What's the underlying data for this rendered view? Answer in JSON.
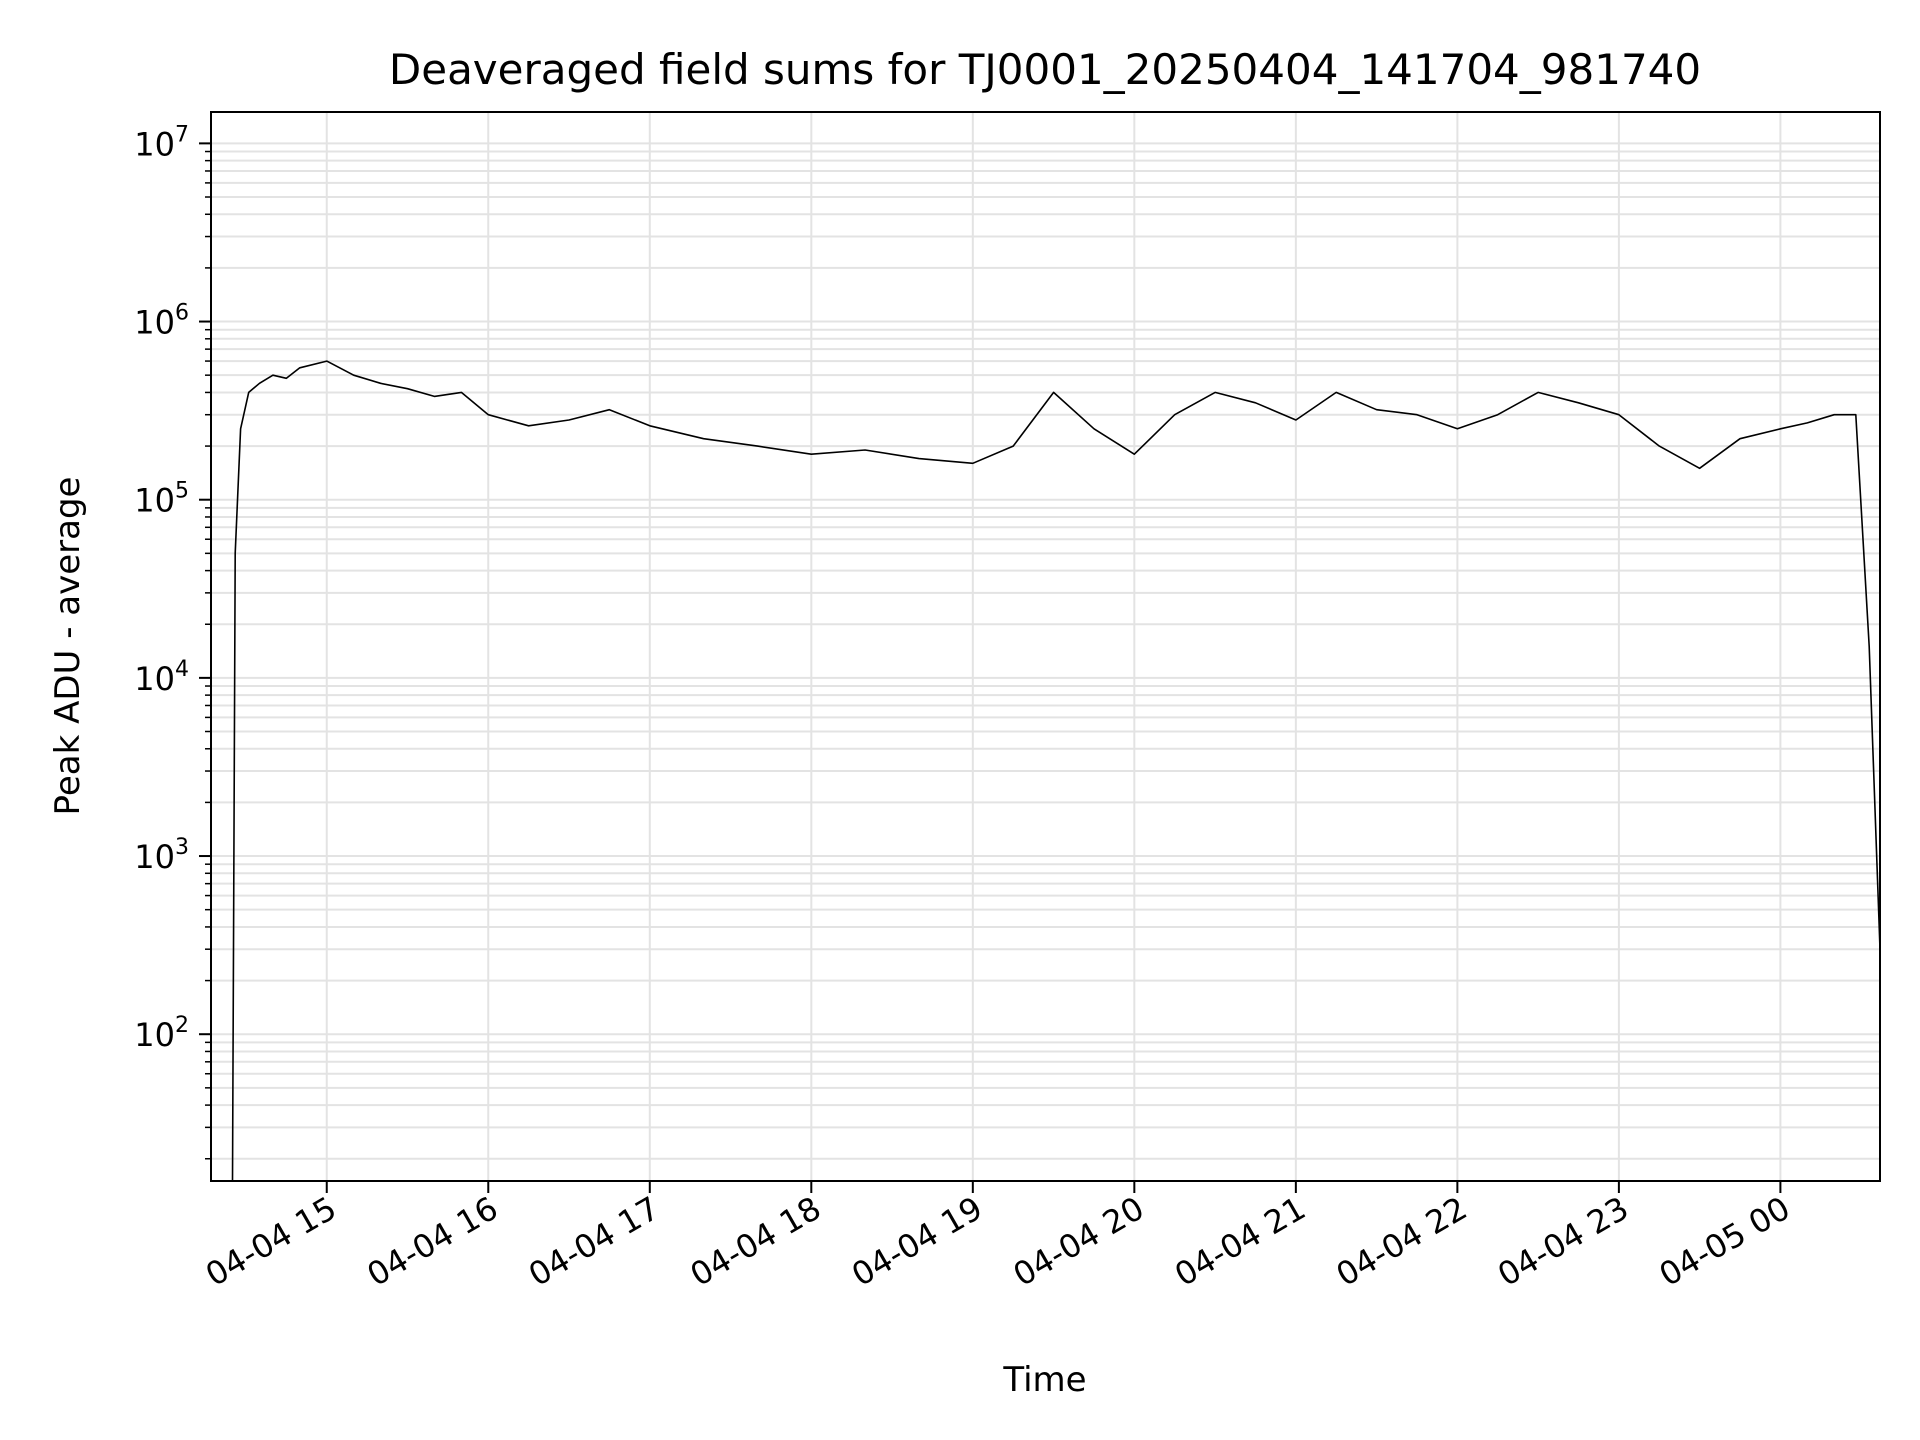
{
  "chart_data": {
    "type": "line",
    "title": "Deaveraged field sums for TJ0001_20250404_141704_981740",
    "xlabel": "Time",
    "ylabel": "Peak ADU - average",
    "yscale": "log",
    "ylim": [
      15,
      15000000
    ],
    "xlim": [
      "2025-04-04T14:17",
      "2025-04-05T00:37"
    ],
    "grid": true,
    "grid_color": "#e3e3e3",
    "line_color": "#000000",
    "x_ticks": [
      {
        "t": "2025-04-04T15:00",
        "label": "04-04 15"
      },
      {
        "t": "2025-04-04T16:00",
        "label": "04-04 16"
      },
      {
        "t": "2025-04-04T17:00",
        "label": "04-04 17"
      },
      {
        "t": "2025-04-04T18:00",
        "label": "04-04 18"
      },
      {
        "t": "2025-04-04T19:00",
        "label": "04-04 19"
      },
      {
        "t": "2025-04-04T20:00",
        "label": "04-04 20"
      },
      {
        "t": "2025-04-04T21:00",
        "label": "04-04 21"
      },
      {
        "t": "2025-04-04T22:00",
        "label": "04-04 22"
      },
      {
        "t": "2025-04-04T23:00",
        "label": "04-04 23"
      },
      {
        "t": "2025-04-05T00:00",
        "label": "04-05 00"
      }
    ],
    "y_ticks": [
      {
        "value": 100,
        "base": "10",
        "exp": "2"
      },
      {
        "value": 1000,
        "base": "10",
        "exp": "3"
      },
      {
        "value": 10000,
        "base": "10",
        "exp": "4"
      },
      {
        "value": 100000,
        "base": "10",
        "exp": "5"
      },
      {
        "value": 1000000,
        "base": "10",
        "exp": "6"
      },
      {
        "value": 10000000,
        "base": "10",
        "exp": "7"
      }
    ],
    "series": [
      {
        "x": [
          "2025-04-04T14:25",
          "2025-04-04T14:26",
          "2025-04-04T14:28",
          "2025-04-04T14:31",
          "2025-04-04T14:35",
          "2025-04-04T14:40",
          "2025-04-04T14:45",
          "2025-04-04T14:50",
          "2025-04-04T15:00",
          "2025-04-04T15:10",
          "2025-04-04T15:20",
          "2025-04-04T15:30",
          "2025-04-04T15:40",
          "2025-04-04T15:50",
          "2025-04-04T16:00",
          "2025-04-04T16:15",
          "2025-04-04T16:30",
          "2025-04-04T16:45",
          "2025-04-04T17:00",
          "2025-04-04T17:20",
          "2025-04-04T17:40",
          "2025-04-04T18:00",
          "2025-04-04T18:20",
          "2025-04-04T18:40",
          "2025-04-04T19:00",
          "2025-04-04T19:15",
          "2025-04-04T19:30",
          "2025-04-04T19:45",
          "2025-04-04T20:00",
          "2025-04-04T20:15",
          "2025-04-04T20:30",
          "2025-04-04T20:45",
          "2025-04-04T21:00",
          "2025-04-04T21:15",
          "2025-04-04T21:30",
          "2025-04-04T21:45",
          "2025-04-04T22:00",
          "2025-04-04T22:15",
          "2025-04-04T22:30",
          "2025-04-04T22:45",
          "2025-04-04T23:00",
          "2025-04-04T23:15",
          "2025-04-04T23:30",
          "2025-04-04T23:45",
          "2025-04-05T00:00",
          "2025-04-05T00:10",
          "2025-04-05T00:20",
          "2025-04-05T00:28",
          "2025-04-05T00:33",
          "2025-04-05T00:37"
        ],
        "y": [
          15,
          50000,
          250000,
          400000,
          450000,
          500000,
          480000,
          550000,
          600000,
          500000,
          450000,
          420000,
          380000,
          400000,
          300000,
          260000,
          280000,
          320000,
          260000,
          220000,
          200000,
          180000,
          190000,
          170000,
          160000,
          200000,
          400000,
          250000,
          180000,
          300000,
          400000,
          350000,
          280000,
          400000,
          320000,
          300000,
          250000,
          300000,
          400000,
          350000,
          300000,
          200000,
          150000,
          220000,
          250000,
          270000,
          300000,
          300000,
          15000,
          300
        ]
      }
    ]
  }
}
